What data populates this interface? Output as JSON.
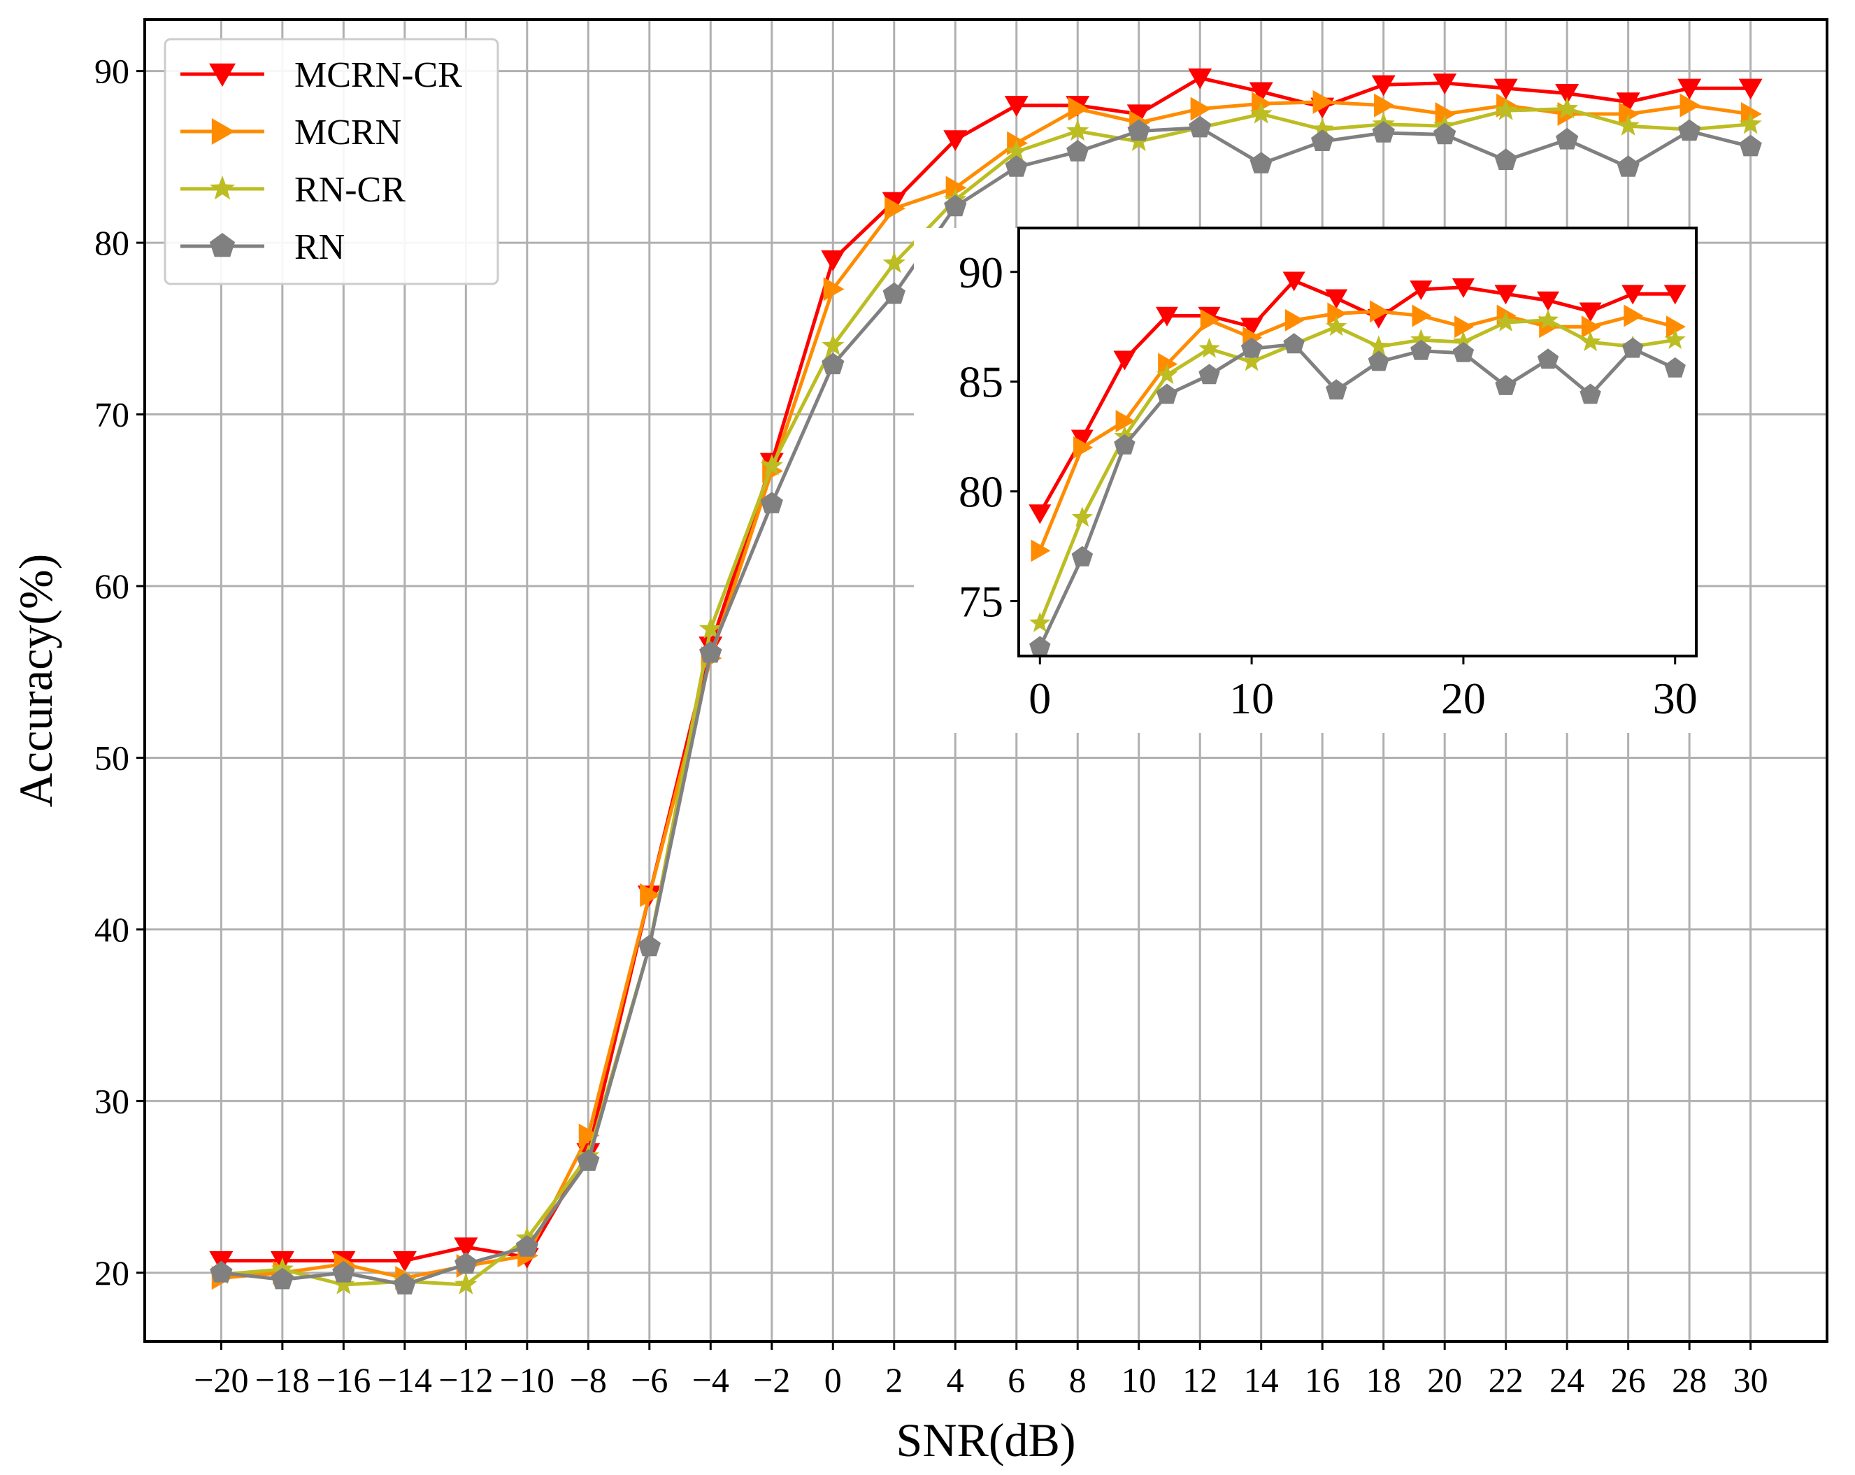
{
  "chart_data": [
    {
      "type": "line",
      "xlabel": "SNR(dB)",
      "ylabel": "Accuracy(%)",
      "xlim": [
        -22.5,
        32.5
      ],
      "ylim": [
        16,
        93
      ],
      "x_ticks": [
        -20,
        -18,
        -16,
        -14,
        -12,
        -10,
        -8,
        -6,
        -4,
        -2,
        0,
        2,
        4,
        6,
        8,
        10,
        12,
        14,
        16,
        18,
        20,
        22,
        24,
        26,
        28,
        30
      ],
      "x_tick_labels": [
        "−20",
        "−18",
        "−16",
        "−14",
        "−12",
        "−10",
        "−8",
        "−6",
        "−4",
        "−2",
        "0",
        "2",
        "4",
        "6",
        "8",
        "10",
        "12",
        "14",
        "16",
        "18",
        "20",
        "22",
        "24",
        "26",
        "28",
        "30"
      ],
      "y_ticks": [
        20,
        30,
        40,
        50,
        60,
        70,
        80,
        90
      ],
      "y_tick_labels": [
        "20",
        "30",
        "40",
        "50",
        "60",
        "70",
        "80",
        "90"
      ],
      "grid": true,
      "legend_position": "top-left",
      "x": [
        -20,
        -18,
        -16,
        -14,
        -12,
        -10,
        -8,
        -6,
        -4,
        -2,
        0,
        2,
        4,
        6,
        8,
        10,
        12,
        14,
        16,
        18,
        20,
        22,
        24,
        26,
        28,
        30
      ],
      "series": [
        {
          "name": "MCRN-CR",
          "color": "#ff0000",
          "marker": "triangle-down",
          "values": [
            20.7,
            20.7,
            20.7,
            20.7,
            21.5,
            20.9,
            27.0,
            42.0,
            56.5,
            67.2,
            79.0,
            82.4,
            86.0,
            88.0,
            88.0,
            87.5,
            89.6,
            88.8,
            87.9,
            89.2,
            89.3,
            89.0,
            88.7,
            88.2,
            89.0,
            89.0
          ]
        },
        {
          "name": "MCRN",
          "color": "#ff8c00",
          "marker": "triangle-right",
          "values": [
            19.7,
            20.0,
            20.5,
            19.7,
            20.4,
            21.0,
            28.0,
            42.0,
            55.8,
            66.7,
            77.3,
            82.0,
            83.2,
            85.8,
            87.8,
            87.0,
            87.8,
            88.1,
            88.2,
            88.0,
            87.5,
            88.0,
            87.5,
            87.5,
            88.0,
            87.5
          ]
        },
        {
          "name": "RN-CR",
          "color": "#bcbd22",
          "marker": "star",
          "values": [
            19.9,
            20.2,
            19.3,
            19.5,
            19.3,
            22.0,
            26.8,
            39.0,
            57.5,
            67.0,
            74.0,
            78.8,
            82.5,
            85.3,
            86.5,
            85.9,
            86.7,
            87.5,
            86.6,
            86.9,
            86.8,
            87.7,
            87.8,
            86.8,
            86.6,
            86.9
          ]
        },
        {
          "name": "RN",
          "color": "#808080",
          "marker": "pentagon",
          "values": [
            20.0,
            19.6,
            20.0,
            19.3,
            20.5,
            21.5,
            26.5,
            39.0,
            56.1,
            64.8,
            72.9,
            77.0,
            82.1,
            84.4,
            85.3,
            86.5,
            86.7,
            84.6,
            85.9,
            86.4,
            86.3,
            84.8,
            86.0,
            84.4,
            86.5,
            85.6
          ]
        }
      ]
    },
    {
      "type": "line",
      "inset": true,
      "xlim": [
        -1,
        31
      ],
      "ylim": [
        72.5,
        92
      ],
      "x_ticks": [
        0,
        10,
        20,
        30
      ],
      "x_tick_labels": [
        "0",
        "10",
        "20",
        "30"
      ],
      "y_ticks": [
        75,
        80,
        85,
        90
      ],
      "y_tick_labels": [
        "75",
        "80",
        "85",
        "90"
      ],
      "grid": false,
      "x": [
        0,
        2,
        4,
        6,
        8,
        10,
        12,
        14,
        16,
        18,
        20,
        22,
        24,
        26,
        28,
        30
      ],
      "series": [
        {
          "name": "MCRN-CR",
          "color": "#ff0000",
          "marker": "triangle-down",
          "values": [
            79.0,
            82.4,
            86.0,
            88.0,
            88.0,
            87.5,
            89.6,
            88.8,
            87.9,
            89.2,
            89.3,
            89.0,
            88.7,
            88.2,
            89.0,
            89.0
          ]
        },
        {
          "name": "MCRN",
          "color": "#ff8c00",
          "marker": "triangle-right",
          "values": [
            77.3,
            82.0,
            83.2,
            85.8,
            87.8,
            87.0,
            87.8,
            88.1,
            88.2,
            88.0,
            87.5,
            88.0,
            87.5,
            87.5,
            88.0,
            87.5
          ]
        },
        {
          "name": "RN-CR",
          "color": "#bcbd22",
          "marker": "star",
          "values": [
            74.0,
            78.8,
            82.5,
            85.3,
            86.5,
            85.9,
            86.7,
            87.5,
            86.6,
            86.9,
            86.8,
            87.7,
            87.8,
            86.8,
            86.6,
            86.9
          ]
        },
        {
          "name": "RN",
          "color": "#808080",
          "marker": "pentagon",
          "values": [
            72.9,
            77.0,
            82.1,
            84.4,
            85.3,
            86.5,
            86.7,
            84.6,
            85.9,
            86.4,
            86.3,
            84.8,
            86.0,
            84.4,
            86.5,
            85.6
          ]
        }
      ]
    }
  ]
}
